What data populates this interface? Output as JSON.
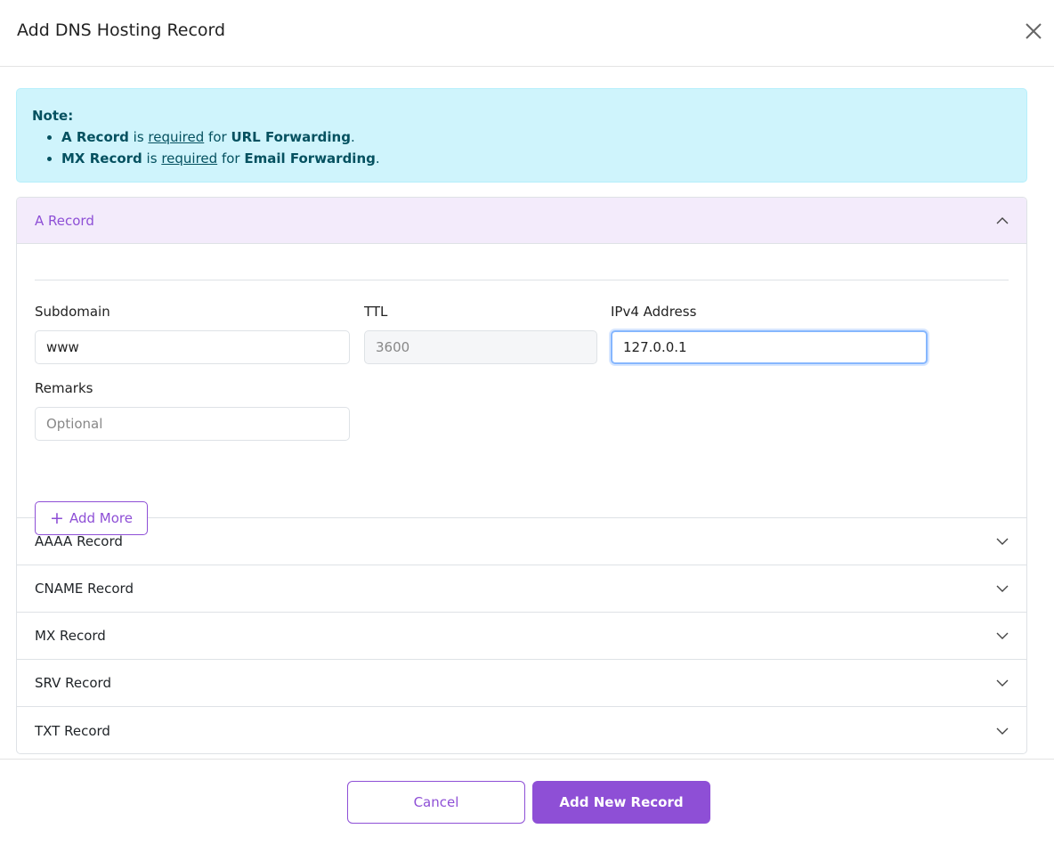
{
  "modal": {
    "title": "Add DNS Hosting Record",
    "close_icon": "close-icon"
  },
  "note": {
    "heading": "Note:",
    "items": [
      {
        "bold1": "A Record",
        "mid": " is ",
        "link": "required",
        "mid2": " for ",
        "bold2": "URL Forwarding",
        "end": "."
      },
      {
        "bold1": "MX Record",
        "mid": " is ",
        "link": "required",
        "mid2": " for ",
        "bold2": "Email Forwarding",
        "end": "."
      }
    ]
  },
  "a_record": {
    "title": "A Record",
    "subdomain": {
      "label": "Subdomain",
      "value": "www"
    },
    "ttl": {
      "label": "TTL",
      "value": "3600"
    },
    "ipv4": {
      "label": "IPv4 Address",
      "value": "127.0.0.1"
    },
    "remarks": {
      "label": "Remarks",
      "placeholder": "Optional"
    },
    "add_more": "Add More"
  },
  "sections": [
    "AAAA Record",
    "CNAME Record",
    "MX Record",
    "SRV Record",
    "TXT Record"
  ],
  "footer": {
    "cancel": "Cancel",
    "submit": "Add New Record"
  },
  "colors": {
    "accent": "#8e4fd6",
    "note_bg": "#cff4fc",
    "note_text": "#055160"
  }
}
